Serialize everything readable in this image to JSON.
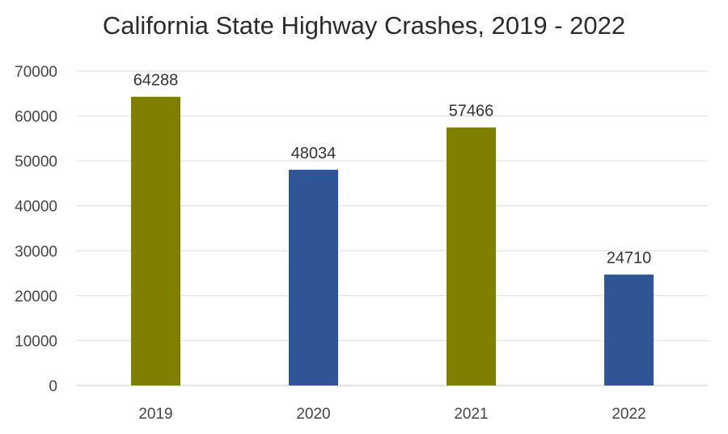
{
  "chart_data": {
    "type": "bar",
    "title": "California State Highway Crashes, 2019  - 2022",
    "xlabel": "",
    "ylabel": "",
    "categories": [
      "2019",
      "2020",
      "2021",
      "2022"
    ],
    "values": [
      64288,
      48034,
      57466,
      24710
    ],
    "bar_colors": [
      "#808000",
      "#2F5597",
      "#808000",
      "#2F5597"
    ],
    "ylim": [
      0,
      70000
    ],
    "yticks": [
      "0",
      "10000",
      "20000",
      "30000",
      "40000",
      "50000",
      "60000",
      "70000"
    ],
    "data_labels": [
      "64288",
      "48034",
      "57466",
      "24710"
    ],
    "grid": true,
    "legend": "none"
  }
}
